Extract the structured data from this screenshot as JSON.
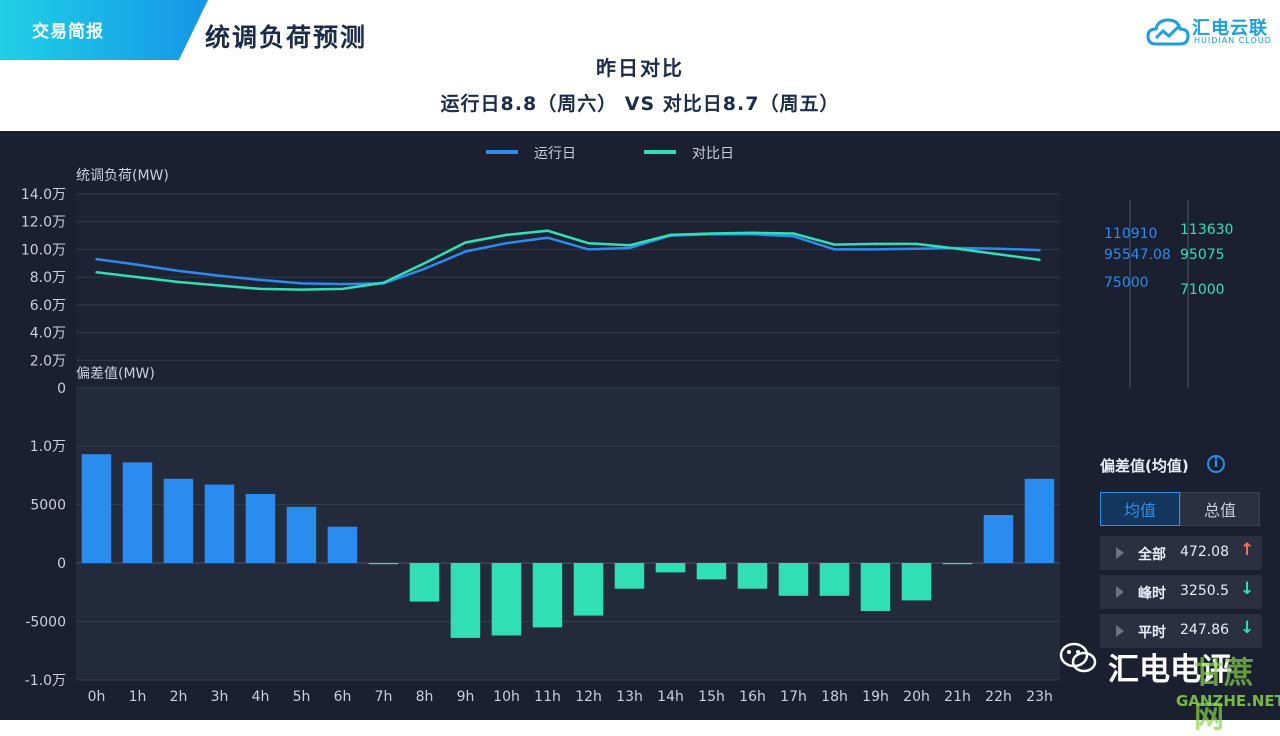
{
  "header": {
    "tag": "交易简报",
    "title": "统调负荷预测",
    "subtitle": "昨日对比",
    "compare": "运行日8.8（周六） VS 对比日8.7（周五）",
    "brand_name": "汇电云联",
    "brand_sub": "HUIDIAN CLOUD"
  },
  "colors": {
    "run": "#2b8cf0",
    "compare": "#30e0b4",
    "up": "#f07850",
    "down": "#30e0b4",
    "accent": "#2e8fe8"
  },
  "chart_data": [
    {
      "type": "line",
      "ylabel": "统调负荷(MW)",
      "ylim": [
        0,
        140000
      ],
      "yticks": [
        "0",
        "2.0万",
        "4.0万",
        "6.0万",
        "8.0万",
        "10.0万",
        "12.0万",
        "14.0万"
      ],
      "categories": [
        "0h",
        "1h",
        "2h",
        "3h",
        "4h",
        "5h",
        "6h",
        "7h",
        "8h",
        "9h",
        "10h",
        "11h",
        "12h",
        "13h",
        "14h",
        "15h",
        "16h",
        "17h",
        "18h",
        "19h",
        "20h",
        "21h",
        "22h",
        "23h"
      ],
      "legend": [
        "运行日",
        "对比日"
      ],
      "series": [
        {
          "name": "运行日",
          "values": [
            93000,
            89000,
            84500,
            81000,
            78000,
            75500,
            75000,
            75500,
            86000,
            98500,
            104500,
            108500,
            100000,
            101000,
            110000,
            111000,
            111000,
            109500,
            100000,
            100000,
            100500,
            101000,
            100500,
            99500
          ]
        },
        {
          "name": "对比日",
          "values": [
            83500,
            80000,
            76500,
            74000,
            71500,
            71000,
            71500,
            76000,
            90000,
            105000,
            110500,
            113500,
            104500,
            103000,
            110500,
            111500,
            112000,
            111500,
            103500,
            104000,
            104000,
            100500,
            96500,
            92500
          ]
        }
      ],
      "side_labels": {
        "run": [
          "110910",
          "95547.08",
          "75000"
        ],
        "compare": [
          "113630",
          "95075",
          "71000"
        ]
      }
    },
    {
      "type": "bar",
      "ylabel": "偏差值(MW)",
      "ylim": [
        -10000,
        10000
      ],
      "yticks": [
        "-1.0万",
        "-5000",
        "0",
        "5000",
        "1.0万"
      ],
      "categories": [
        "0h",
        "1h",
        "2h",
        "3h",
        "4h",
        "5h",
        "6h",
        "7h",
        "8h",
        "9h",
        "10h",
        "11h",
        "12h",
        "13h",
        "14h",
        "15h",
        "16h",
        "17h",
        "18h",
        "19h",
        "20h",
        "21h",
        "22h",
        "23h"
      ],
      "values": [
        9300,
        8600,
        7200,
        6700,
        5900,
        4800,
        3100,
        -100,
        -3300,
        -6400,
        -6200,
        -5500,
        -4500,
        -2200,
        -800,
        -1400,
        -2200,
        -2800,
        -2800,
        -4100,
        -3200,
        -100,
        4100,
        7200
      ]
    }
  ],
  "panel": {
    "title": "偏差值(均值)",
    "info_icon": "info-icon",
    "tabs": [
      "均值",
      "总值"
    ],
    "rows": [
      {
        "label": "全部",
        "value": "472.08",
        "dir": "up",
        "arrow": "↑"
      },
      {
        "label": "峰时",
        "value": "3250.5",
        "dir": "down",
        "arrow": "↓"
      },
      {
        "label": "平时",
        "value": "247.86",
        "dir": "down",
        "arrow": "↓"
      }
    ]
  },
  "watermarks": {
    "wechat": "汇电电评",
    "site": "GANZHE.NET",
    "site_big": "甘蔗网"
  }
}
